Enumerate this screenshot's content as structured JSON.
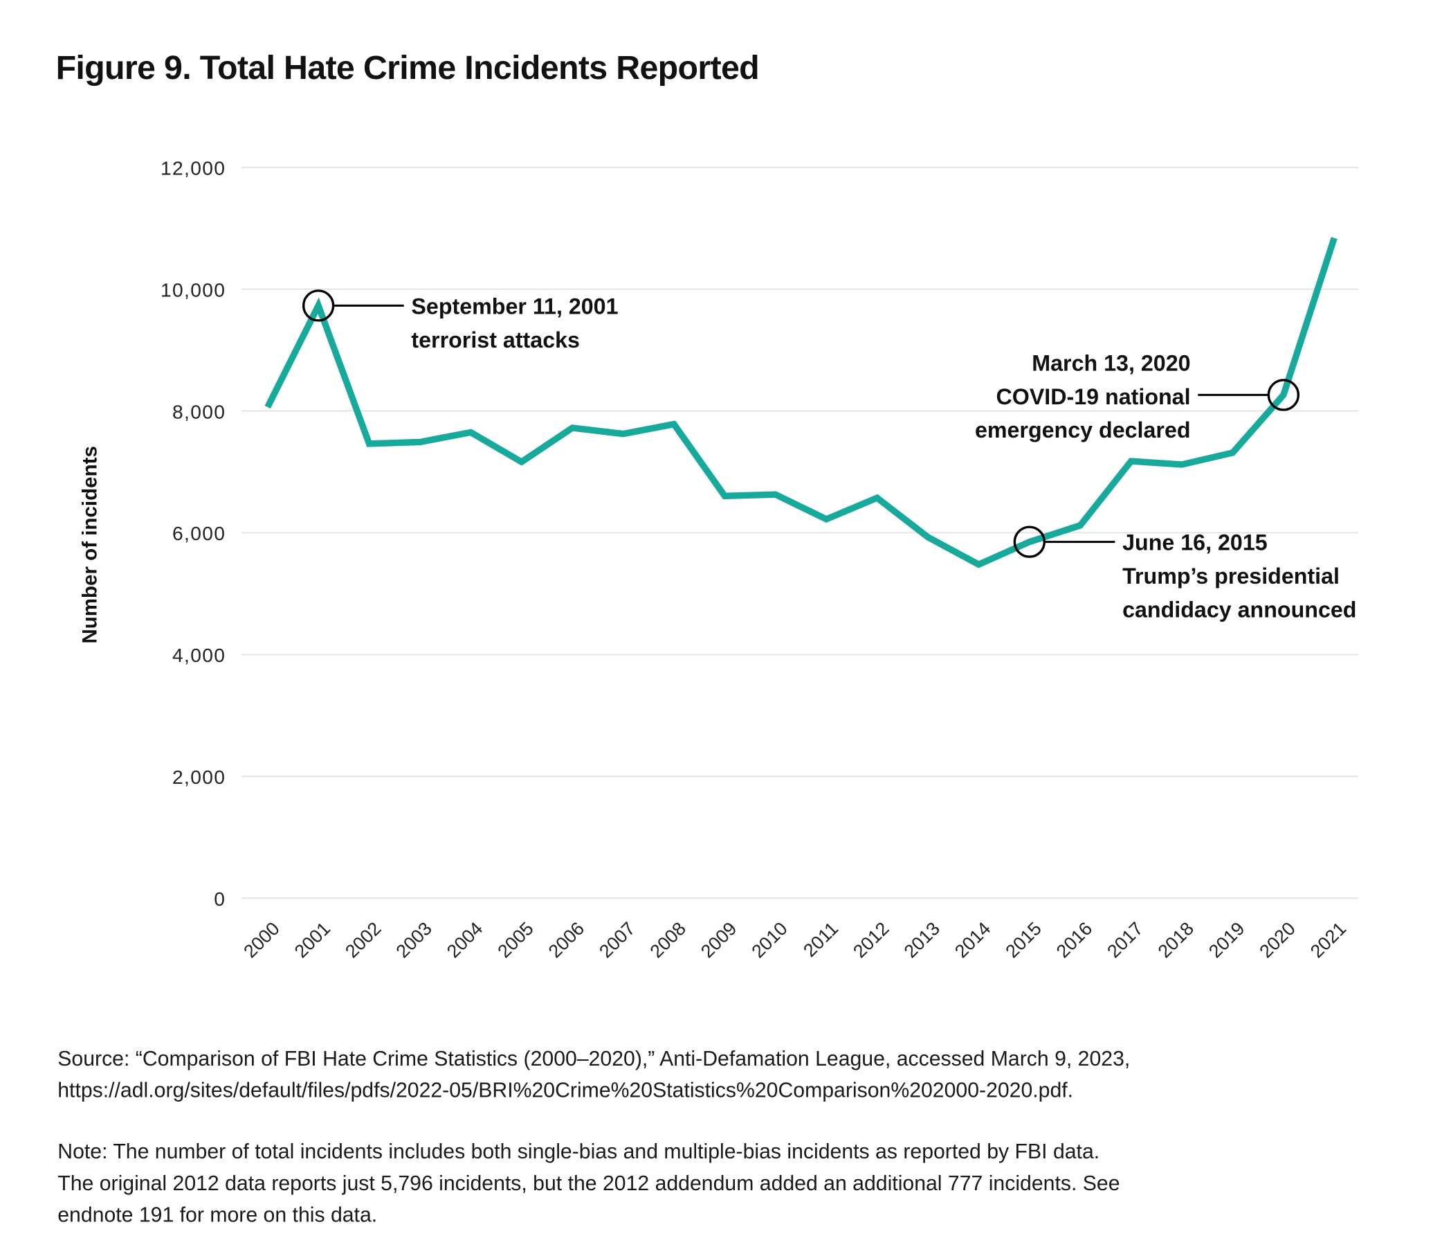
{
  "title": "Figure 9. Total Hate Crime Incidents Reported",
  "chart_data": {
    "type": "line",
    "title": "Figure 9. Total Hate Crime Incidents Reported",
    "xlabel": "",
    "ylabel": "Number of incidents",
    "ylim": [
      0,
      12000
    ],
    "yticks": [
      0,
      2000,
      4000,
      6000,
      8000,
      10000,
      12000
    ],
    "ytick_labels": [
      "0",
      "2,000",
      "4,000",
      "6,000",
      "8,000",
      "10,000",
      "12,000"
    ],
    "grid": "horizontal",
    "line_color": "#17a99b",
    "x": [
      "2000",
      "2001",
      "2002",
      "2003",
      "2004",
      "2005",
      "2006",
      "2007",
      "2008",
      "2009",
      "2010",
      "2011",
      "2012",
      "2013",
      "2014",
      "2015",
      "2016",
      "2017",
      "2018",
      "2019",
      "2020",
      "2021"
    ],
    "values": [
      8063,
      9730,
      7462,
      7489,
      7649,
      7163,
      7722,
      7624,
      7783,
      6604,
      6628,
      6222,
      6573,
      5928,
      5479,
      5850,
      6121,
      7175,
      7120,
      7314,
      8263,
      10840
    ],
    "annotations": [
      {
        "x": 2001,
        "y": 9730,
        "lines": [
          "September 11, 2001",
          "terrorist attacks"
        ],
        "side": "right"
      },
      {
        "x": 2015,
        "y": 5850,
        "lines": [
          "June 16, 2015",
          "Trump’s presidential",
          "candidacy announced"
        ],
        "side": "right"
      },
      {
        "x": 2020,
        "y": 8263,
        "lines": [
          "March 13, 2020",
          "COVID-19 national",
          "emergency declared"
        ],
        "side": "left"
      }
    ]
  },
  "source": {
    "line1": "Source: “Comparison of FBI Hate Crime Statistics (2000–2020),” Anti-Defamation League, accessed March 9, 2023,",
    "line2": "https://adl.org/sites/default/files/pdfs/2022-05/BRI%20Crime%20Statistics%20Comparison%202000-2020.pdf."
  },
  "note": {
    "line1": "Note: The number of total incidents includes both single-bias and multiple-bias incidents as reported by FBI data.",
    "line2": "The original 2012 data reports just 5,796 incidents, but the 2012 addendum added an additional 777 incidents. See",
    "line3": "endnote 191 for more on this data."
  }
}
